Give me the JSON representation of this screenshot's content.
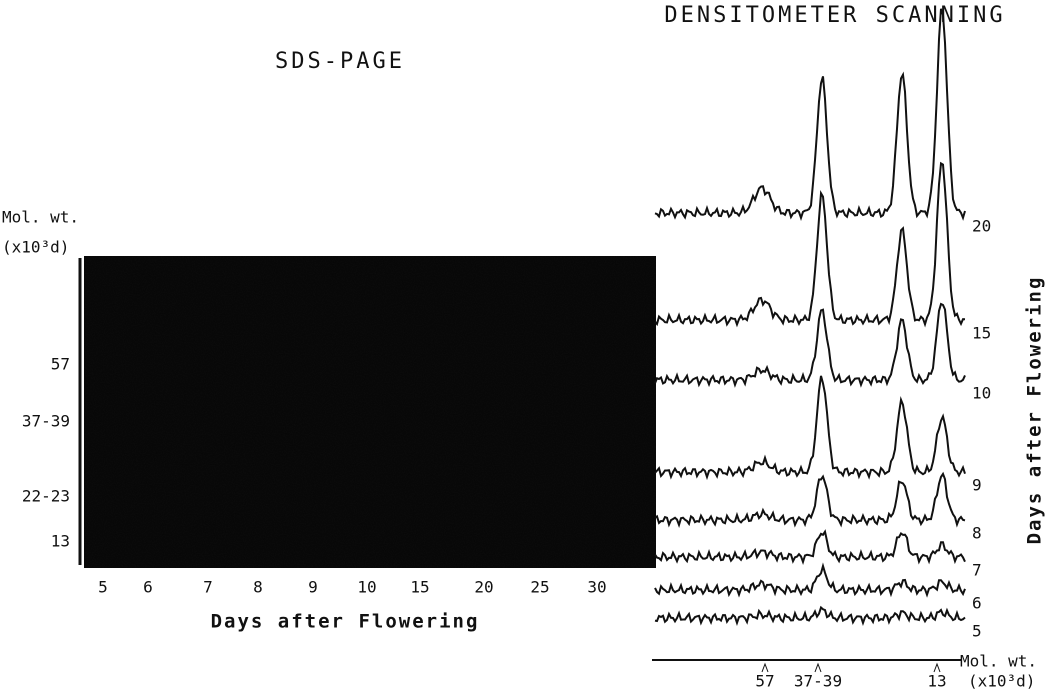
{
  "gel": {
    "title": "SDS-PAGE",
    "mw_axis_title": "Mol. wt.",
    "mw_axis_unit": "(x10³d)",
    "mw_markers": [
      "57",
      "37-39",
      "22-23",
      "13"
    ],
    "lanes": [
      "5",
      "6",
      "7",
      "8",
      "9",
      "10",
      "15",
      "20",
      "25",
      "30"
    ],
    "x_label": "Days after Flowering"
  },
  "scan": {
    "title": "DENSITOMETER SCANNING",
    "traces": [
      "20",
      "15",
      "10",
      "9",
      "8",
      "7",
      "6",
      "5"
    ],
    "side_label": "Days after Flowering",
    "mw_markers": [
      "57",
      "37-39",
      "13"
    ],
    "mw_axis_title": "Mol. wt.",
    "mw_axis_unit": "(x10³d)"
  }
}
